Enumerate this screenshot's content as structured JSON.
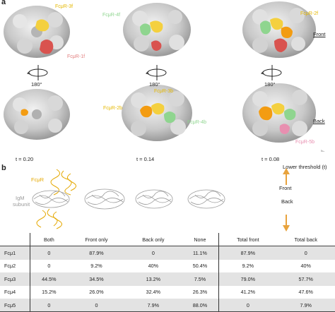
{
  "panel_a": {
    "letter": "a",
    "top_labels": [
      "FcμR-3f",
      "FcμR-4f",
      "FcμR-2f",
      "FcμR-1f"
    ],
    "bottom_labels": [
      "FcμR-2b",
      "FcμR-3b",
      "FcμR-4b",
      "FcμR-5b"
    ],
    "rotation": "180°",
    "thresholds": [
      "t = 0.20",
      "t = 0.14",
      "t = 0.08"
    ],
    "axis_label": "Lower threshold (t)",
    "front_label": "Front",
    "back_label": "Back"
  },
  "panel_b": {
    "letter": "b",
    "fcmr_label": "FcμR",
    "igm_label_1": "IgM",
    "igm_label_2": "subunit",
    "front_label": "Front",
    "back_label": "Back"
  },
  "colors": {
    "yellow": "#f4d03f",
    "green": "#8fd58f",
    "orange": "#f39c12",
    "red": "#d9534f",
    "pink": "#e88fb0",
    "grey": "#cfcfcf",
    "arrow_orange": "#e8a33d"
  },
  "table": {
    "headers": [
      "",
      "Both",
      "Front only",
      "Back only",
      "None",
      "Total front",
      "Total back"
    ],
    "rows": [
      [
        "Fcμ1",
        "0",
        "87.9%",
        "0",
        "11.1%",
        "87.9%",
        "0"
      ],
      [
        "Fcμ2",
        "0",
        "9.2%",
        "40%",
        "50.4%",
        "9.2%",
        "40%"
      ],
      [
        "Fcμ3",
        "44.5%",
        "34.5%",
        "13.2%",
        "7.5%",
        "79.0%",
        "57.7%"
      ],
      [
        "Fcμ4",
        "15.2%",
        "26.0%",
        "32.4%",
        "26.3%",
        "41.2%",
        "47.6%"
      ],
      [
        "Fcμ5",
        "0",
        "0",
        "7.9%",
        "88.0%",
        "0",
        "7.9%"
      ]
    ]
  }
}
